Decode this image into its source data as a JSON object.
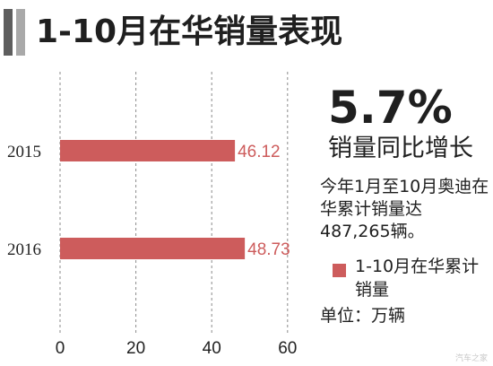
{
  "header": {
    "title": "1-10月在华销量表现"
  },
  "summary": {
    "percent": "5.7%",
    "growth_label": "销量同比增长",
    "note": "今年1月至10月奥迪在华累计销量达487,265辆。",
    "legend_label": "1-10月在华累计销量",
    "unit": "单位：万辆"
  },
  "watermark": "汽车之家",
  "colors": {
    "bar": "#cd5c5c",
    "value_label": "#cd5c5c",
    "grid": "#8a8a8a",
    "header_dark": "#5e5e5e",
    "header_light": "#a9a9a9"
  },
  "chart_data": {
    "type": "bar",
    "orientation": "horizontal",
    "categories": [
      "2015",
      "2016"
    ],
    "values": [
      46.12,
      48.73
    ],
    "value_labels": [
      "46.12",
      "48.73"
    ],
    "xlim": [
      0,
      60
    ],
    "xticks": [
      0,
      20,
      40,
      60
    ],
    "xtick_labels": [
      "0",
      "20",
      "40",
      "60"
    ],
    "grid": "vertical dashed",
    "legend": "right"
  }
}
